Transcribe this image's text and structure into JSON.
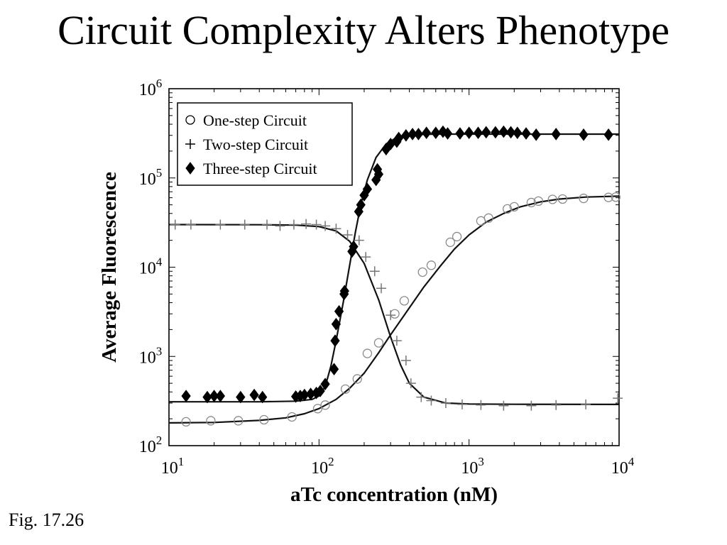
{
  "slide": {
    "title": "Circuit Complexity Alters Phenotype",
    "caption": "Fig. 17.26"
  },
  "chart_data": {
    "type": "scatter",
    "xlabel": "aTc concentration (nM)",
    "ylabel": "Average Fluorescence",
    "xscale": "log",
    "yscale": "log",
    "xlim": [
      10,
      10000
    ],
    "ylim": [
      100,
      1000000
    ],
    "x_ticks": [
      {
        "base": "10",
        "exp": "1",
        "value": 10
      },
      {
        "base": "10",
        "exp": "2",
        "value": 100
      },
      {
        "base": "10",
        "exp": "3",
        "value": 1000
      },
      {
        "base": "10",
        "exp": "4",
        "value": 10000
      }
    ],
    "y_ticks": [
      {
        "base": "10",
        "exp": "2",
        "value": 100
      },
      {
        "base": "10",
        "exp": "3",
        "value": 1000
      },
      {
        "base": "10",
        "exp": "4",
        "value": 10000
      },
      {
        "base": "10",
        "exp": "5",
        "value": 100000
      },
      {
        "base": "10",
        "exp": "6",
        "value": 1000000
      }
    ],
    "legend": {
      "position": "top-left",
      "entries": [
        {
          "label": "One-step Circuit",
          "marker": "circle"
        },
        {
          "label": "Two-step Circuit",
          "marker": "plus"
        },
        {
          "label": "Three-step Circuit",
          "marker": "diamond"
        }
      ]
    },
    "series": [
      {
        "name": "One-step Circuit",
        "marker": "circle",
        "color": "#8a8a8a",
        "points": [
          [
            13,
            185
          ],
          [
            19,
            190
          ],
          [
            29,
            190
          ],
          [
            43,
            195
          ],
          [
            66,
            210
          ],
          [
            98,
            260
          ],
          [
            110,
            285
          ],
          [
            150,
            430
          ],
          [
            180,
            560
          ],
          [
            210,
            1080
          ],
          [
            250,
            1420
          ],
          [
            320,
            3000
          ],
          [
            370,
            4200
          ],
          [
            490,
            8800
          ],
          [
            560,
            10500
          ],
          [
            750,
            19000
          ],
          [
            830,
            22000
          ],
          [
            1200,
            33000
          ],
          [
            1350,
            35500
          ],
          [
            1800,
            45000
          ],
          [
            2000,
            47500
          ],
          [
            2600,
            53000
          ],
          [
            2900,
            55000
          ],
          [
            3600,
            57500
          ],
          [
            4200,
            58000
          ],
          [
            5800,
            59000
          ],
          [
            8500,
            60500
          ],
          [
            9500,
            61000
          ]
        ],
        "fit": [
          [
            10,
            180
          ],
          [
            20,
            182
          ],
          [
            40,
            192
          ],
          [
            60,
            205
          ],
          [
            80,
            228
          ],
          [
            100,
            260
          ],
          [
            130,
            330
          ],
          [
            160,
            440
          ],
          [
            200,
            650
          ],
          [
            250,
            1100
          ],
          [
            300,
            1750
          ],
          [
            400,
            3500
          ],
          [
            500,
            6000
          ],
          [
            650,
            10500
          ],
          [
            800,
            16000
          ],
          [
            1000,
            23000
          ],
          [
            1300,
            32000
          ],
          [
            1700,
            40000
          ],
          [
            2200,
            47500
          ],
          [
            3000,
            54000
          ],
          [
            4000,
            58000
          ],
          [
            6000,
            61000
          ],
          [
            10000,
            62500
          ]
        ]
      },
      {
        "name": "Two-step Circuit",
        "marker": "plus",
        "color": "#777777",
        "points": [
          [
            11,
            30000
          ],
          [
            14,
            30000
          ],
          [
            22,
            30000
          ],
          [
            32,
            30000
          ],
          [
            45,
            30000
          ],
          [
            55,
            29000
          ],
          [
            68,
            30000
          ],
          [
            82,
            30500
          ],
          [
            96,
            30000
          ],
          [
            110,
            29000
          ],
          [
            130,
            27000
          ],
          [
            155,
            23000
          ],
          [
            185,
            20000
          ],
          [
            205,
            13000
          ],
          [
            235,
            9000
          ],
          [
            260,
            5800
          ],
          [
            300,
            2900
          ],
          [
            330,
            1500
          ],
          [
            380,
            900
          ],
          [
            410,
            500
          ],
          [
            480,
            350
          ],
          [
            560,
            320
          ],
          [
            700,
            300
          ],
          [
            900,
            290
          ],
          [
            1200,
            285
          ],
          [
            1700,
            280
          ],
          [
            2600,
            280
          ],
          [
            3800,
            285
          ],
          [
            6000,
            290
          ],
          [
            9800,
            340
          ]
        ],
        "fit": [
          [
            10,
            30000
          ],
          [
            40,
            29900
          ],
          [
            70,
            29600
          ],
          [
            100,
            28500
          ],
          [
            130,
            25500
          ],
          [
            160,
            19500
          ],
          [
            200,
            11000
          ],
          [
            250,
            4300
          ],
          [
            300,
            1650
          ],
          [
            350,
            800
          ],
          [
            400,
            500
          ],
          [
            500,
            350
          ],
          [
            700,
            300
          ],
          [
            1000,
            293
          ],
          [
            2000,
            291
          ],
          [
            10000,
            290
          ]
        ]
      },
      {
        "name": "Three-step Circuit",
        "marker": "diamond",
        "color": "#000000",
        "points": [
          [
            13,
            360
          ],
          [
            18,
            350
          ],
          [
            20,
            360
          ],
          [
            22,
            360
          ],
          [
            30,
            350
          ],
          [
            37,
            370
          ],
          [
            42,
            350
          ],
          [
            70,
            355
          ],
          [
            75,
            360
          ],
          [
            80,
            370
          ],
          [
            88,
            380
          ],
          [
            96,
            390
          ],
          [
            102,
            410
          ],
          [
            110,
            490
          ],
          [
            126,
            720
          ],
          [
            128,
            1500
          ],
          [
            130,
            2300
          ],
          [
            136,
            3200
          ],
          [
            147,
            5000
          ],
          [
            148,
            5400
          ],
          [
            166,
            15000
          ],
          [
            170,
            17000
          ],
          [
            184,
            42000
          ],
          [
            190,
            50000
          ],
          [
            200,
            64000
          ],
          [
            210,
            75000
          ],
          [
            240,
            95000
          ],
          [
            245,
            125000
          ],
          [
            250,
            110000
          ],
          [
            280,
            210000
          ],
          [
            300,
            240000
          ],
          [
            330,
            255000
          ],
          [
            340,
            280000
          ],
          [
            380,
            300000
          ],
          [
            420,
            310000
          ],
          [
            460,
            310000
          ],
          [
            520,
            320000
          ],
          [
            600,
            320000
          ],
          [
            670,
            330000
          ],
          [
            720,
            315000
          ],
          [
            870,
            315000
          ],
          [
            1000,
            320000
          ],
          [
            1150,
            320000
          ],
          [
            1300,
            325000
          ],
          [
            1500,
            325000
          ],
          [
            1700,
            330000
          ],
          [
            1900,
            325000
          ],
          [
            2100,
            320000
          ],
          [
            2400,
            315000
          ],
          [
            2800,
            305000
          ],
          [
            3800,
            310000
          ],
          [
            5800,
            305000
          ],
          [
            8500,
            305000
          ]
        ],
        "fit": [
          [
            10,
            310
          ],
          [
            40,
            310
          ],
          [
            70,
            315
          ],
          [
            90,
            330
          ],
          [
            100,
            360
          ],
          [
            110,
            460
          ],
          [
            120,
            780
          ],
          [
            130,
            1500
          ],
          [
            145,
            4000
          ],
          [
            160,
            10500
          ],
          [
            175,
            25000
          ],
          [
            190,
            50000
          ],
          [
            210,
            95000
          ],
          [
            240,
            170000
          ],
          [
            280,
            240000
          ],
          [
            330,
            285000
          ],
          [
            400,
            305000
          ],
          [
            600,
            310000
          ],
          [
            10000,
            310000
          ]
        ]
      }
    ]
  }
}
